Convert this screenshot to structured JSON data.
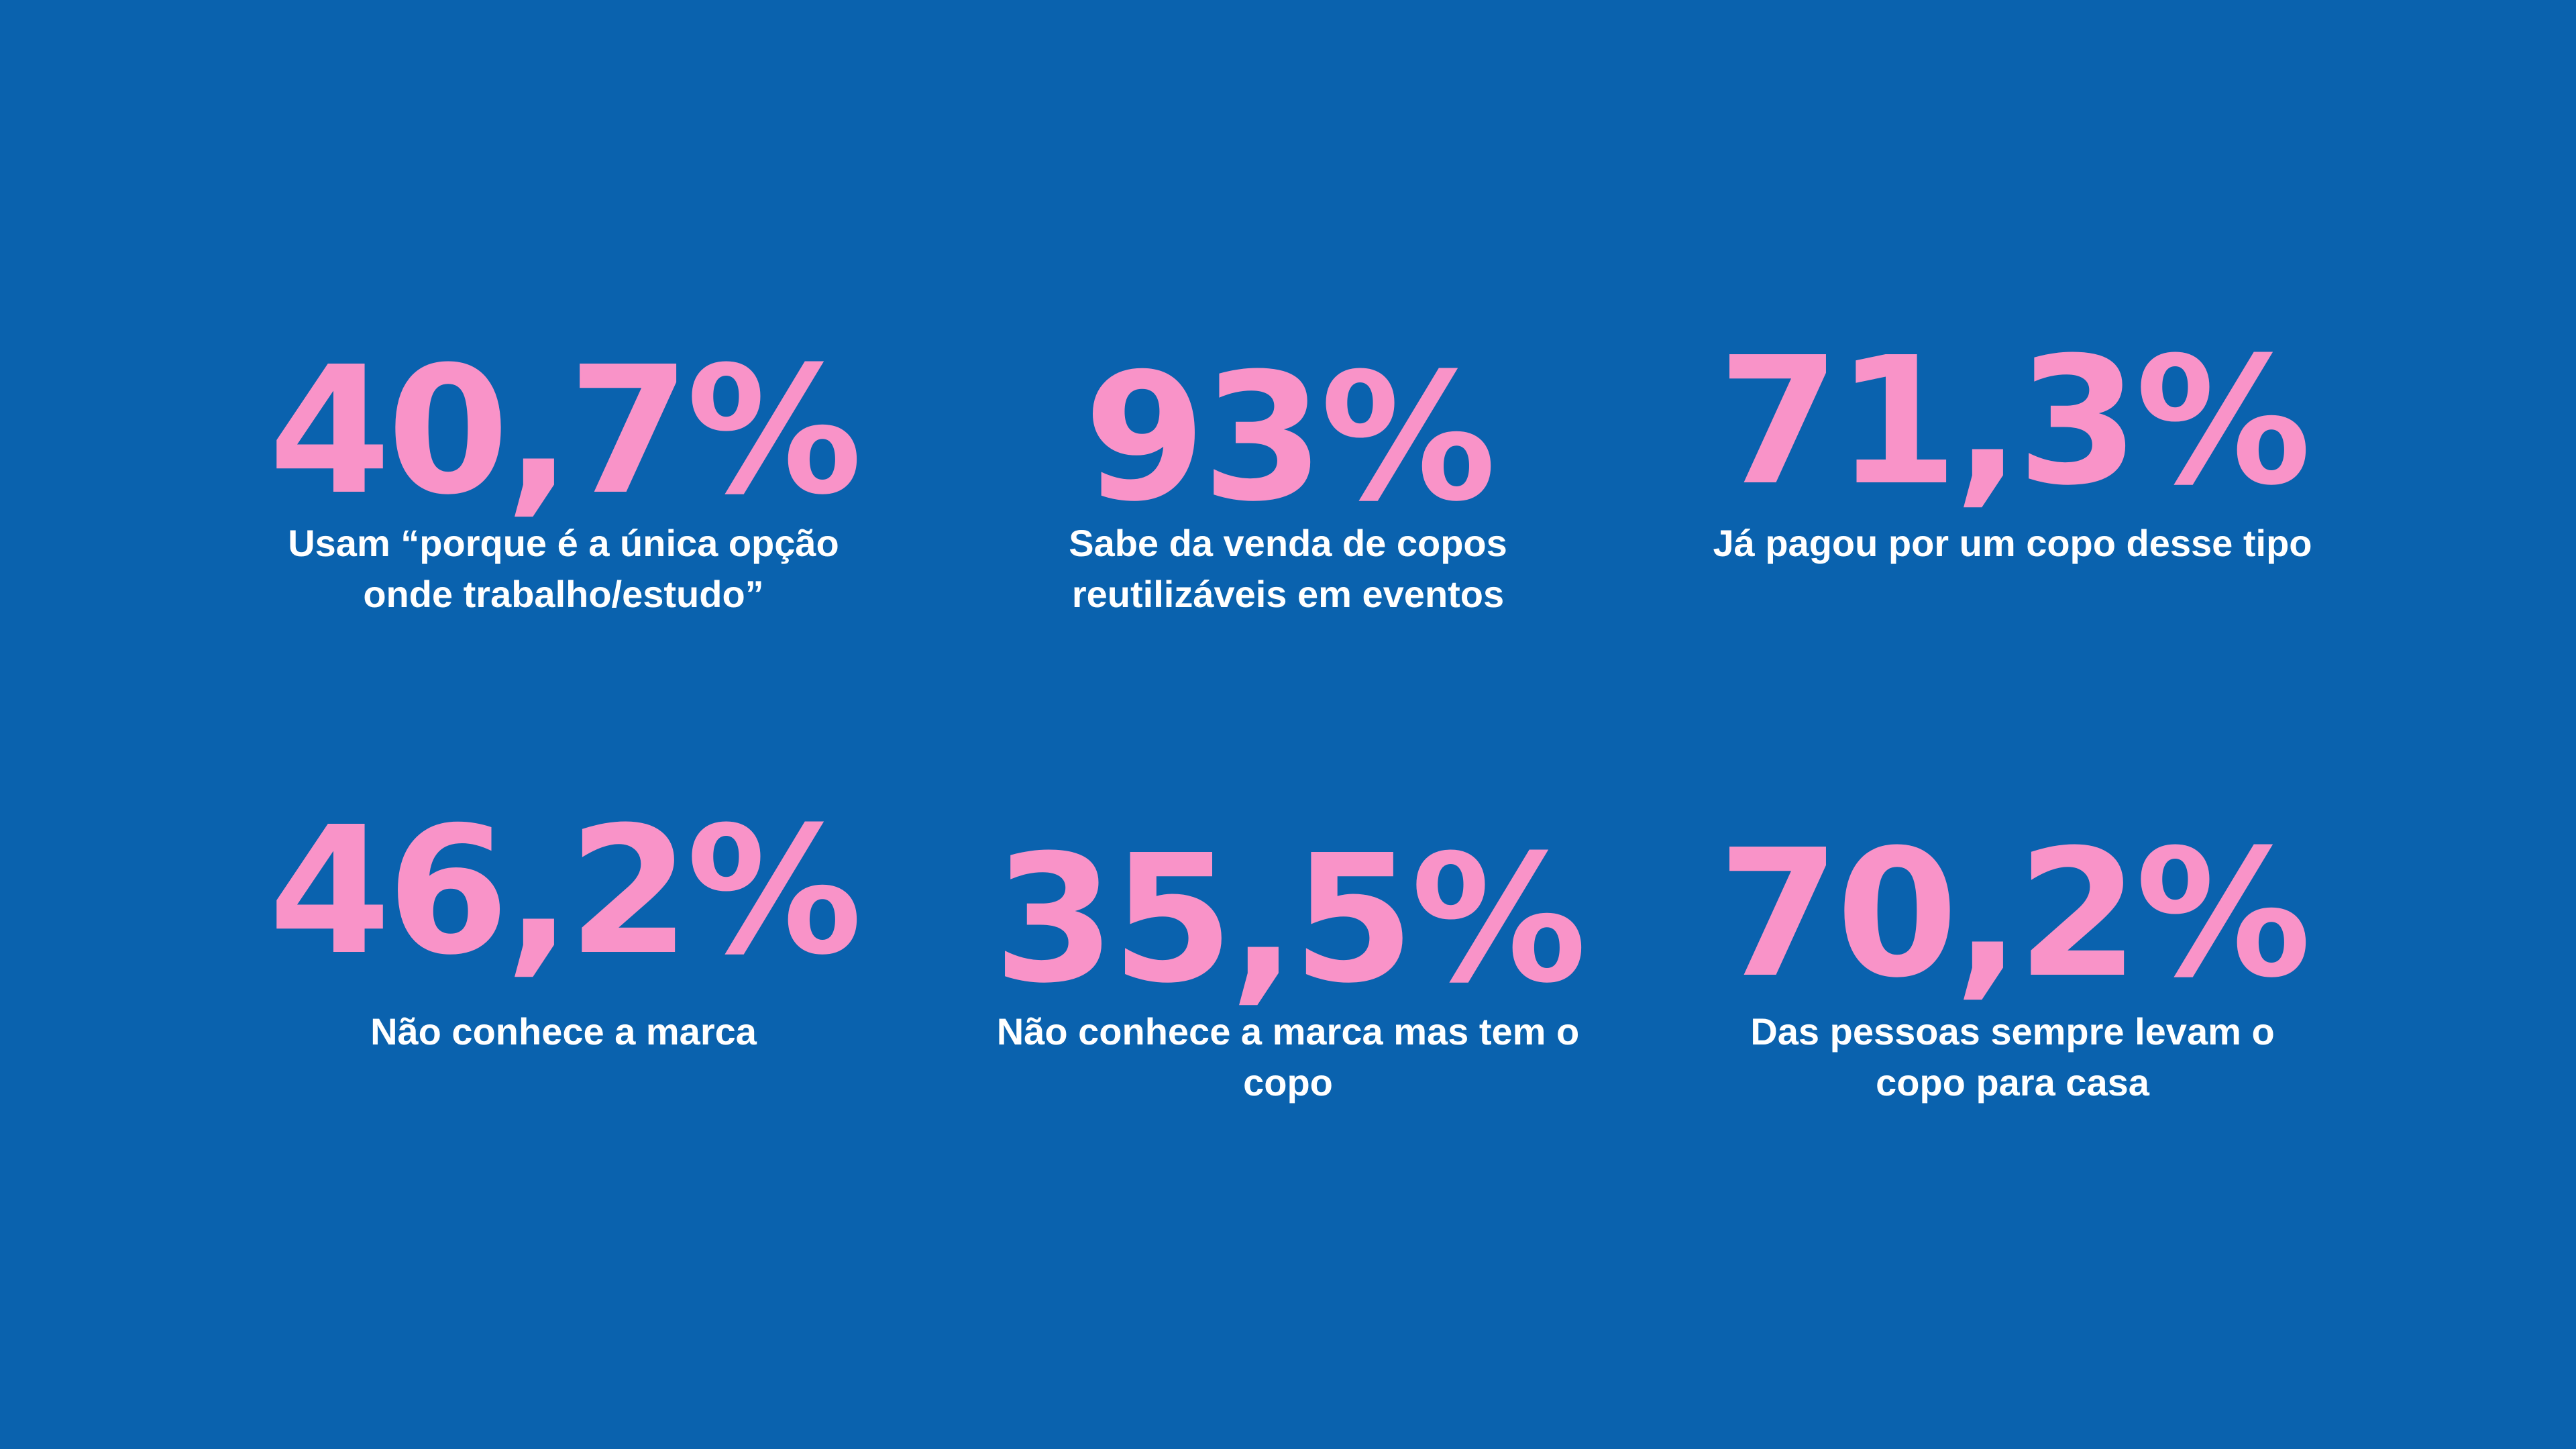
{
  "stats": [
    {
      "value": "40,7%",
      "caption": [
        "Usam “porque é a única opção",
        "onde trabalho/estudo”"
      ]
    },
    {
      "value": "93%",
      "caption": [
        "Sabe da venda de copos",
        "reutilizáveis em eventos"
      ]
    },
    {
      "value": "71,3%",
      "caption": [
        "Já pagou por um copo desse tipo"
      ]
    },
    {
      "value": "46,2%",
      "caption": [
        "Não conhece a marca"
      ]
    },
    {
      "value": "35,5%",
      "caption": [
        "Não conhece a marca mas tem o",
        "copo"
      ]
    },
    {
      "value": "70,2%",
      "caption": [
        "Das pessoas sempre levam o",
        "copo para casa"
      ]
    }
  ],
  "colors": {
    "background": "#0a62ae",
    "accent": "#f993c8",
    "text": "#ffffff"
  }
}
